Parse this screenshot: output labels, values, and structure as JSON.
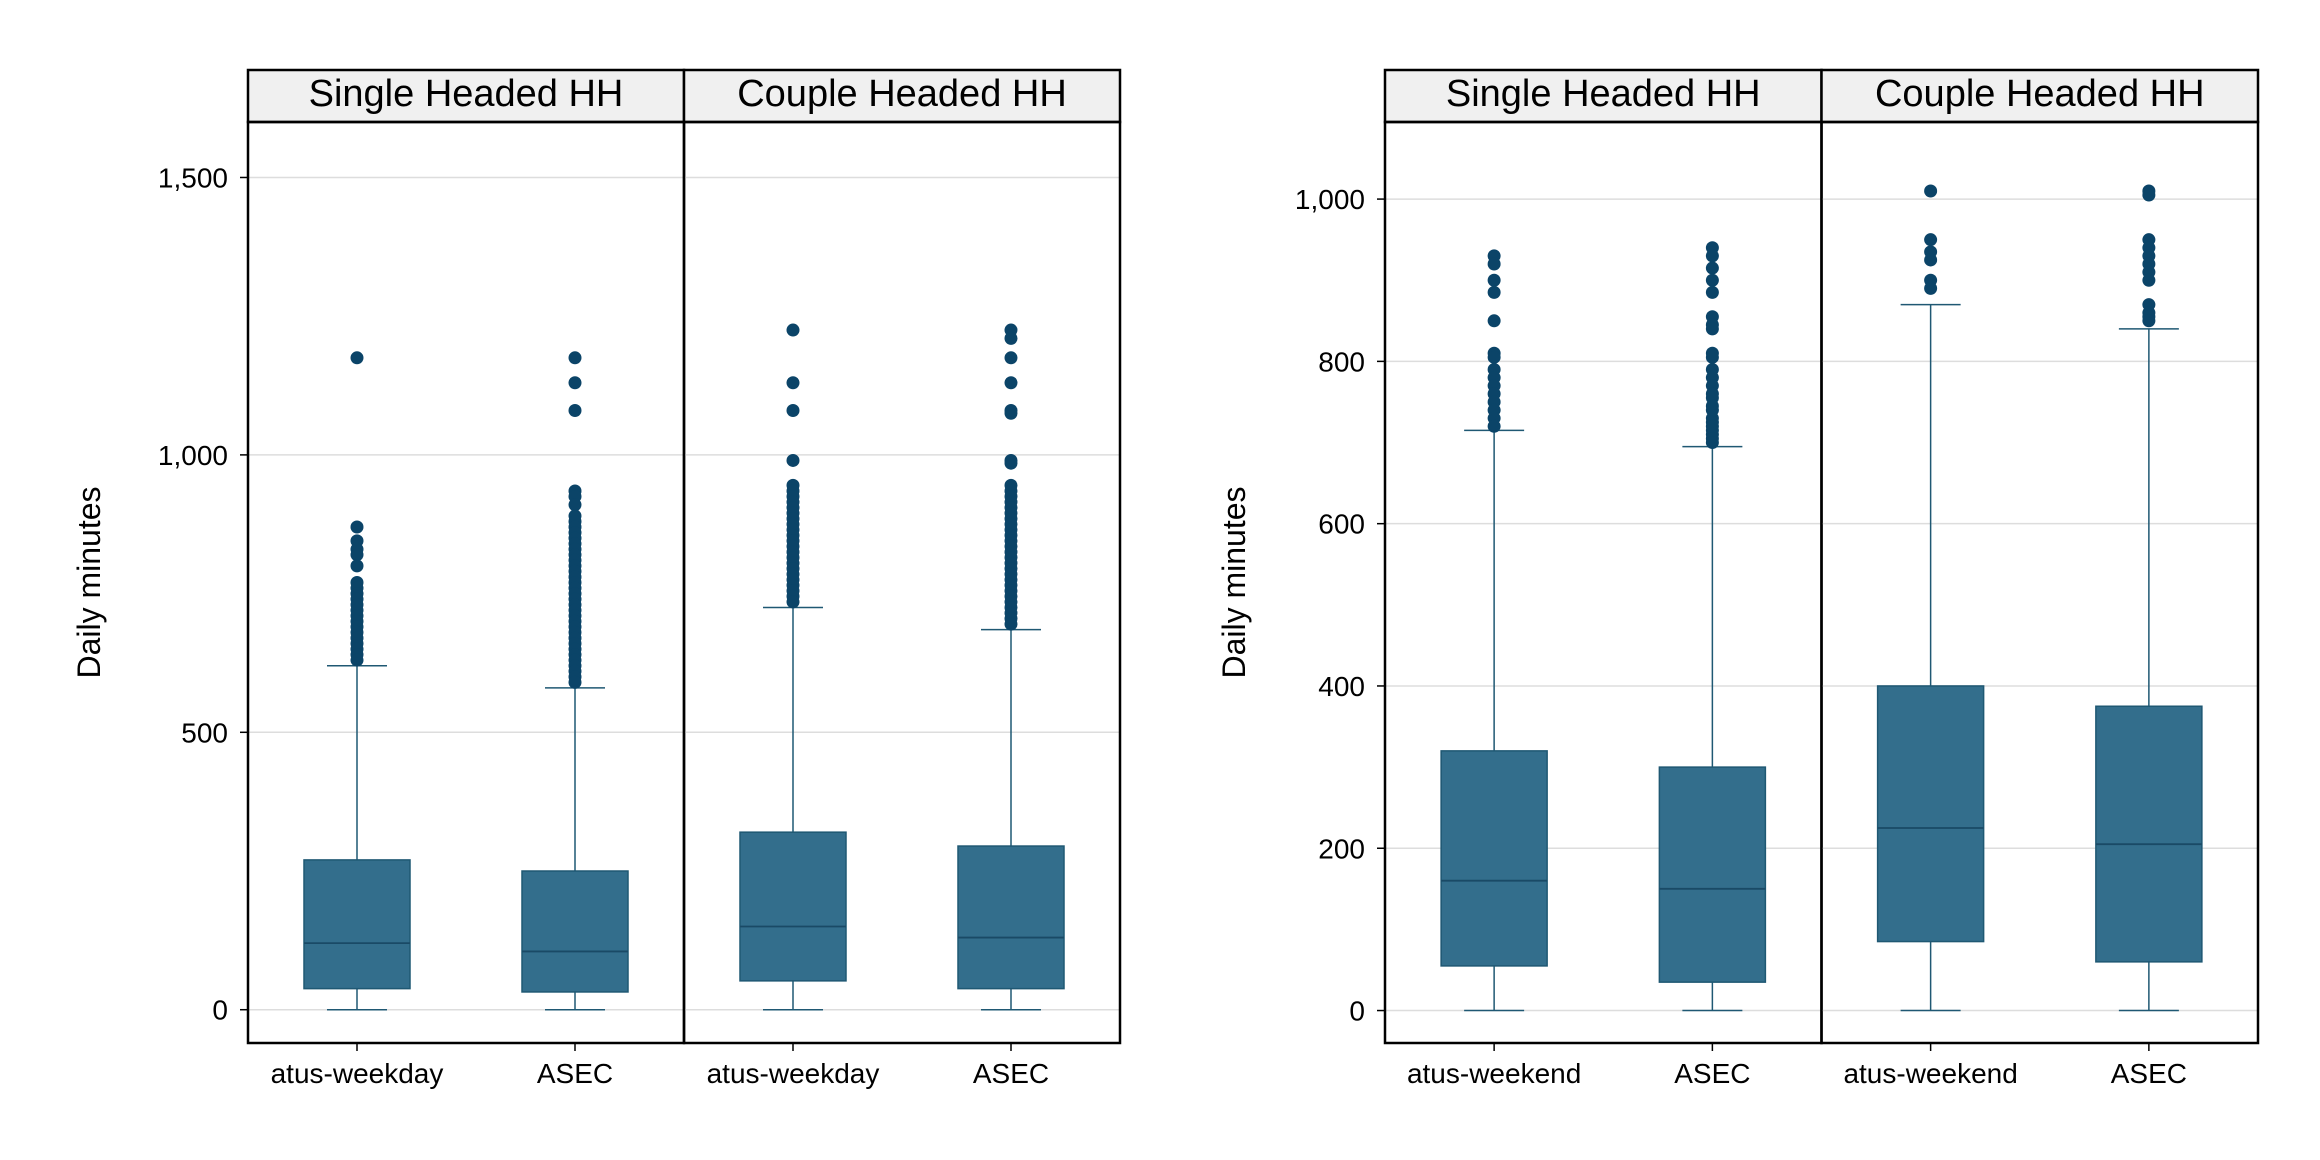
{
  "colors": {
    "box": "#336e8c",
    "outline": "#1f5873",
    "outlier": "#0b4468",
    "grid": "#dddddd",
    "strip": "#f0f0f0",
    "frame": "#000000"
  },
  "chart_data": [
    {
      "type": "box",
      "ylabel": "Daily minutes",
      "ylim": [
        -60,
        1600
      ],
      "yticks": [
        0,
        500,
        1000,
        1500
      ],
      "ytick_labels": [
        "0",
        "500",
        "1,000",
        "1,500"
      ],
      "grid": true,
      "panels": [
        {
          "strip": "Single Headed HH",
          "groups": [
            {
              "label": "atus-weekday",
              "min": 0,
              "q1": 38,
              "median": 120,
              "q3": 270,
              "max": 620,
              "outliers": [
                1175,
                870,
                845,
                830,
                820,
                800,
                770,
                760,
                750,
                740,
                730,
                720,
                710,
                700,
                690,
                680,
                670,
                660,
                650,
                640,
                630
              ]
            },
            {
              "label": "ASEC",
              "min": 0,
              "q1": 32,
              "median": 105,
              "q3": 250,
              "max": 580,
              "outliers": [
                1175,
                1130,
                1080,
                935,
                925,
                910,
                890,
                880,
                870,
                860,
                850,
                840,
                830,
                820,
                810,
                800,
                790,
                780,
                770,
                760,
                750,
                740,
                730,
                720,
                710,
                700,
                690,
                680,
                670,
                660,
                650,
                640,
                630,
                620,
                610,
                600,
                590
              ]
            }
          ]
        },
        {
          "strip": "Couple Headed HH",
          "groups": [
            {
              "label": "atus-weekday",
              "min": 0,
              "q1": 52,
              "median": 150,
              "q3": 320,
              "max": 725,
              "outliers": [
                1225,
                1130,
                1080,
                990,
                945,
                935,
                925,
                915,
                905,
                895,
                885,
                875,
                865,
                855,
                845,
                835,
                825,
                815,
                805,
                795,
                785,
                775,
                765,
                755,
                745,
                735
              ]
            },
            {
              "label": "ASEC",
              "min": 0,
              "q1": 38,
              "median": 130,
              "q3": 295,
              "max": 685,
              "outliers": [
                1225,
                1210,
                1175,
                1130,
                1080,
                1075,
                990,
                985,
                945,
                935,
                925,
                915,
                905,
                895,
                885,
                875,
                865,
                855,
                845,
                835,
                825,
                815,
                805,
                795,
                785,
                775,
                765,
                755,
                745,
                735,
                725,
                715,
                705,
                695
              ]
            }
          ]
        }
      ]
    },
    {
      "type": "box",
      "ylabel": "Daily minutes",
      "ylim": [
        -40,
        1095
      ],
      "yticks": [
        0,
        200,
        400,
        600,
        800,
        1000
      ],
      "ytick_labels": [
        "0",
        "200",
        "400",
        "600",
        "800",
        "1,000"
      ],
      "grid": true,
      "panels": [
        {
          "strip": "Single Headed HH",
          "groups": [
            {
              "label": "atus-weekend",
              "min": 0,
              "q1": 55,
              "median": 160,
              "q3": 320,
              "max": 715,
              "outliers": [
                930,
                920,
                900,
                885,
                850,
                810,
                805,
                790,
                780,
                770,
                760,
                750,
                740,
                730,
                720
              ]
            },
            {
              "label": "ASEC",
              "min": 0,
              "q1": 35,
              "median": 150,
              "q3": 300,
              "max": 695,
              "outliers": [
                940,
                930,
                915,
                900,
                885,
                855,
                845,
                840,
                810,
                805,
                790,
                780,
                770,
                760,
                755,
                745,
                740,
                730,
                725,
                720,
                715,
                710,
                705,
                700
              ]
            }
          ]
        },
        {
          "strip": "Couple Headed HH",
          "groups": [
            {
              "label": "atus-weekend",
              "min": 0,
              "q1": 85,
              "median": 225,
              "q3": 400,
              "max": 870,
              "outliers": [
                1010,
                950,
                935,
                925,
                900,
                890
              ]
            },
            {
              "label": "ASEC",
              "min": 0,
              "q1": 60,
              "median": 205,
              "q3": 375,
              "max": 840,
              "outliers": [
                1010,
                1005,
                950,
                940,
                930,
                920,
                910,
                900,
                870,
                860,
                855,
                850
              ]
            }
          ]
        }
      ]
    }
  ]
}
